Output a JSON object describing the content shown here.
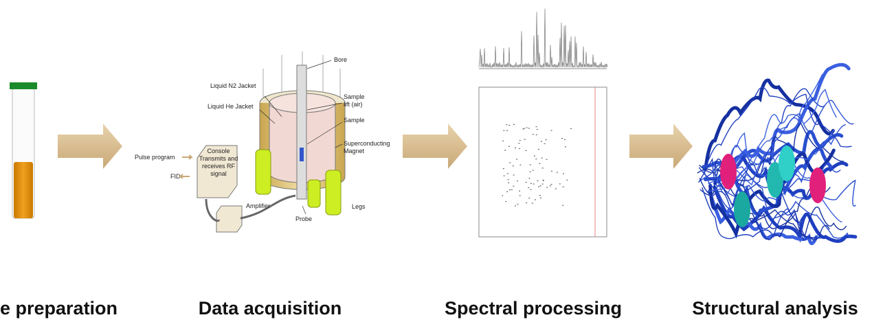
{
  "stages": [
    "e preparation",
    "Data acquisition",
    "Spectral processing",
    "Structural analysis"
  ],
  "instrument": {
    "bore": "Bore",
    "n2_jacket": "Liquid N2 Jacket",
    "he_jacket": "Liquid He Jacket",
    "sample_lift": [
      "Sample",
      "lift (air)"
    ],
    "sample": "Sample",
    "magnet": [
      "Superconducting",
      "Magnet"
    ],
    "pulse_program": "Pulse program",
    "fid": "FID",
    "console": [
      "Console",
      "Transmits and",
      "receives RF",
      "signal"
    ],
    "amplifier": "Amplifier",
    "probe": "Probe",
    "legs": "Legs"
  }
}
